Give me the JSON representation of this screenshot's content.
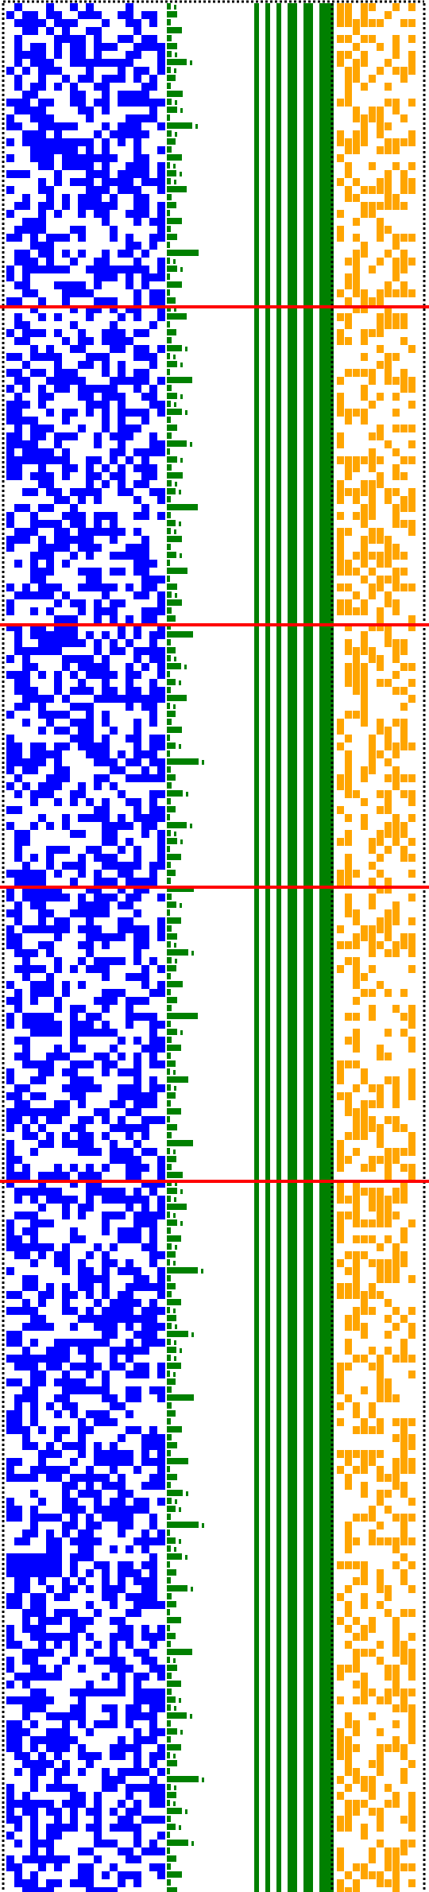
{
  "colors": {
    "background": "#ffffff",
    "state_cells": "#0000ff",
    "carry_bits": "#008000",
    "counter_bars": "#008000",
    "output_cells": "#ffa500",
    "stage_separator": "#ff0000",
    "frame_dots": "#000000"
  },
  "grid": {
    "rows": 238,
    "left_columns": 20,
    "carry_columns": 5,
    "output_columns": 10,
    "left_density": 0.5,
    "output_density": 0.42,
    "seed": 1729
  },
  "stage_separator_rows": [
    38,
    78,
    111,
    148
  ],
  "counter_bars": {
    "count": 6,
    "widths": [
      1,
      1,
      1,
      2,
      2,
      3
    ]
  }
}
